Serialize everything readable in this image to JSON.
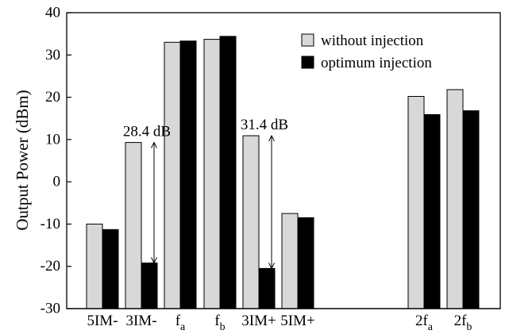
{
  "chart_data": {
    "type": "bar",
    "ylabel": "Output Power (dBm)",
    "xlabel": "",
    "ylim": [
      -30,
      40
    ],
    "yticks": [
      40,
      30,
      20,
      10,
      0,
      -10,
      -20,
      -30
    ],
    "grid": false,
    "legend_position": "top-right",
    "categories": [
      {
        "main": "5IM-",
        "sub": ""
      },
      {
        "main": "3IM-",
        "sub": ""
      },
      {
        "main": "f",
        "sub": "a"
      },
      {
        "main": "f",
        "sub": "b"
      },
      {
        "main": "3IM+",
        "sub": ""
      },
      {
        "main": "5IM+",
        "sub": ""
      },
      {
        "main": "2f",
        "sub": "a"
      },
      {
        "main": "2f",
        "sub": "b"
      }
    ],
    "series": [
      {
        "name": "without injection",
        "color": "#d8d8d8",
        "values": [
          -10.0,
          9.3,
          33.0,
          33.7,
          10.9,
          -7.5,
          20.2,
          21.8
        ]
      },
      {
        "name": "optimum injection",
        "color": "#000000",
        "values": [
          -11.3,
          -19.2,
          33.3,
          34.4,
          -20.5,
          -8.5,
          15.9,
          16.8
        ]
      }
    ],
    "annotations": [
      {
        "text": "28.4 dB",
        "category_index": 1,
        "from": 9.3,
        "to": -19.2
      },
      {
        "text": "31.4 dB",
        "category_index": 4,
        "from": 10.9,
        "to": -20.5
      }
    ]
  }
}
